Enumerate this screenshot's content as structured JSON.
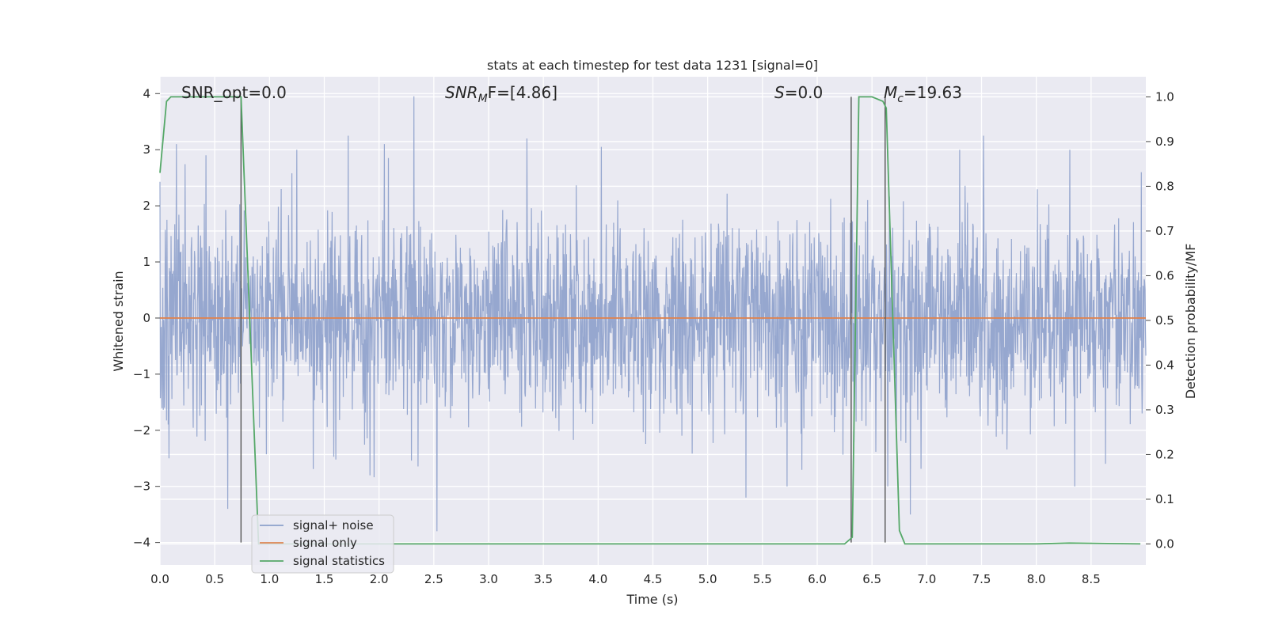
{
  "chart_data": {
    "type": "line",
    "title": "stats at each timestep for test data 1231 [signal=0]",
    "xlabel": "Time (s)",
    "ylabel": "Whitened strain",
    "ylabel_right": "Detection probability/MF",
    "xlim": [
      0.0,
      9.0
    ],
    "ylim": [
      -4.4,
      4.3
    ],
    "ylim_right": [
      -0.047,
      1.045
    ],
    "x_ticks": [
      "0.0",
      "0.5",
      "1.0",
      "1.5",
      "2.0",
      "2.5",
      "3.0",
      "3.5",
      "4.0",
      "4.5",
      "5.0",
      "5.5",
      "6.0",
      "6.5",
      "7.0",
      "7.5",
      "8.0",
      "8.5"
    ],
    "y_ticks": [
      "−4",
      "−3",
      "−2",
      "−1",
      "0",
      "1",
      "2",
      "3",
      "4"
    ],
    "y_right_ticks": [
      "0.0",
      "0.1",
      "0.2",
      "0.3",
      "0.4",
      "0.5",
      "0.6",
      "0.7",
      "0.8",
      "0.9",
      "1.0"
    ],
    "annotations": {
      "snr_opt": "SNR_opt=0.0",
      "snr_mf_prefix": "SNR",
      "snr_mf_sub": "M",
      "snr_mf_suffix": "F=[4.86]",
      "s_prefix": "S",
      "s_suffix": "=0.0",
      "mc_prefix": "M",
      "mc_sub": "c",
      "mc_suffix": "=19.63"
    },
    "series": [
      {
        "name": "signal+ noise",
        "color": "#8da0cb",
        "description_type": "noise",
        "typical_amplitude": 1.5,
        "peaks": [
          {
            "x": 0.15,
            "y": 3.1
          },
          {
            "x": 0.42,
            "y": 2.9
          },
          {
            "x": 0.62,
            "y": -3.4
          },
          {
            "x": 1.25,
            "y": 3.0
          },
          {
            "x": 1.72,
            "y": 3.25
          },
          {
            "x": 2.05,
            "y": 3.1
          },
          {
            "x": 2.32,
            "y": 3.95
          },
          {
            "x": 2.53,
            "y": -3.8
          },
          {
            "x": 3.35,
            "y": 3.2
          },
          {
            "x": 4.03,
            "y": 3.05
          },
          {
            "x": 5.35,
            "y": -3.2
          },
          {
            "x": 6.85,
            "y": -3.5
          },
          {
            "x": 7.52,
            "y": 3.25
          },
          {
            "x": 8.35,
            "y": -3.0
          },
          {
            "x": 8.96,
            "y": 2.6
          }
        ]
      },
      {
        "name": "signal only",
        "color": "#dd8452",
        "x": [
          0.0,
          9.0
        ],
        "y": [
          0.0,
          0.0
        ]
      },
      {
        "name": "signal statistics",
        "color": "#55a868",
        "axis": "right",
        "x": [
          0.0,
          0.06,
          0.1,
          0.2,
          0.7,
          0.74,
          0.9,
          1.0,
          6.25,
          6.32,
          6.38,
          6.5,
          6.6,
          6.63,
          6.75,
          6.8,
          8.0,
          8.3,
          8.95
        ],
        "y": [
          0.83,
          0.99,
          1.0,
          1.0,
          1.0,
          1.0,
          0.0,
          0.0,
          0.0,
          0.015,
          1.0,
          1.0,
          0.99,
          0.975,
          0.03,
          0.0,
          0.0,
          0.002,
          0.0
        ]
      }
    ],
    "vertical_lines": [
      0.74,
      6.31,
      6.62
    ],
    "legend_placement": "lower-left",
    "grid": true
  }
}
